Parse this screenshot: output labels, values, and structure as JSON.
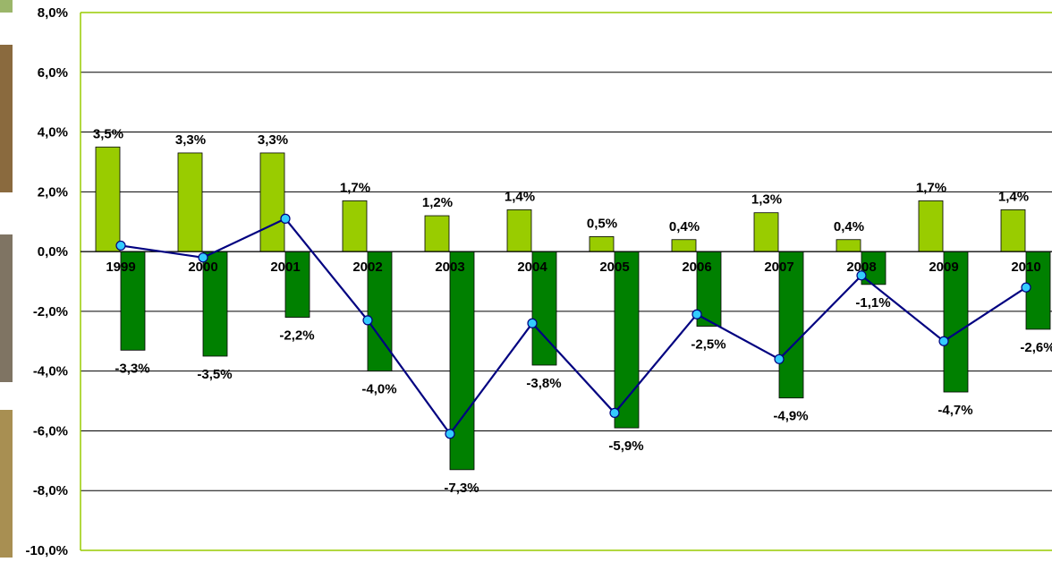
{
  "chart_data": {
    "type": "bar",
    "categories": [
      "1999",
      "2000",
      "2001",
      "2002",
      "2003",
      "2004",
      "2005",
      "2006",
      "2007",
      "2008",
      "2009",
      "2010"
    ],
    "series": [
      {
        "kind": "bar",
        "color": "#99cc00",
        "values": [
          3.5,
          3.3,
          3.3,
          1.7,
          1.2,
          1.4,
          0.5,
          0.4,
          1.3,
          0.4,
          1.7,
          1.4
        ],
        "labels": [
          "3,5%",
          "3,3%",
          "3,3%",
          "1,7%",
          "1,2%",
          "1,4%",
          "0,5%",
          "0,4%",
          "1,3%",
          "0,4%",
          "1,7%",
          "1,4%"
        ]
      },
      {
        "kind": "bar",
        "color": "#008000",
        "values": [
          -3.3,
          -3.5,
          -2.2,
          -4.0,
          -7.3,
          -3.8,
          -5.9,
          -2.5,
          -4.9,
          -1.1,
          -4.7,
          -2.6
        ],
        "labels": [
          "-3,3%",
          "-3,5%",
          "-2,2%",
          "-4,0%",
          "-7,3%",
          "-3,8%",
          "-5,9%",
          "-2,5%",
          "-4,9%",
          "-1,1%",
          "-4,7%",
          "-2,6%"
        ]
      },
      {
        "kind": "line",
        "color": "#000080",
        "marker_color": "#33ccff",
        "values": [
          0.2,
          -0.2,
          1.1,
          -2.3,
          -6.1,
          -2.4,
          -5.4,
          -2.1,
          -3.6,
          -0.8,
          -3.0,
          -1.2
        ]
      }
    ],
    "ylim": [
      -10,
      8
    ],
    "yticks": [
      "8,0%",
      "6,0%",
      "4,0%",
      "2,0%",
      "0,0%",
      "-2,0%",
      "-4,0%",
      "-6,0%",
      "-8,0%",
      "-10,0%"
    ],
    "grid": true,
    "frame_color": "#99cc00",
    "xlabel": "",
    "ylabel": "",
    "title": ""
  }
}
